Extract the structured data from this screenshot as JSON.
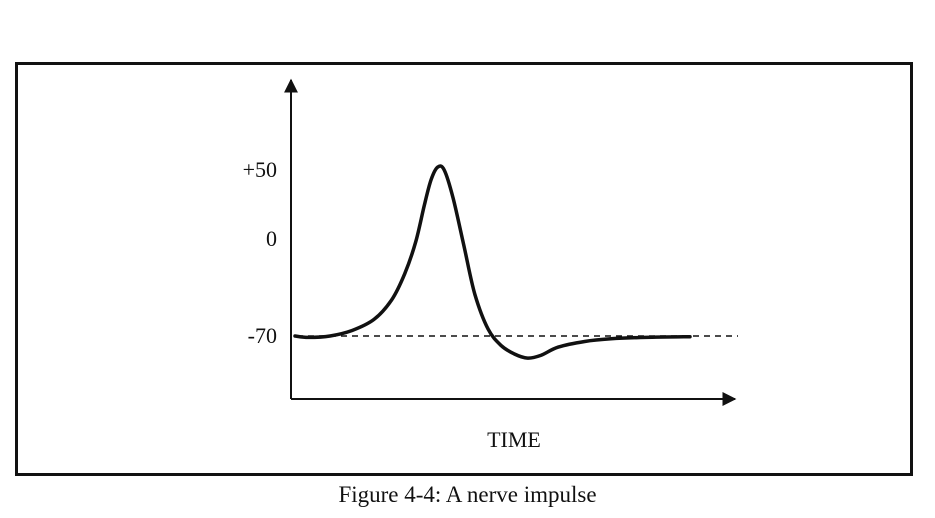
{
  "caption": "Figure 4-4: A nerve impulse",
  "chart_data": {
    "type": "line",
    "title": "",
    "xlabel": "TIME",
    "ylabel": "",
    "yticks": [
      {
        "value": 50,
        "label": "+50"
      },
      {
        "value": 0,
        "label": "0"
      },
      {
        "value": -70,
        "label": "-70"
      }
    ],
    "ylim": [
      -115,
      115
    ],
    "xlim": [
      0,
      10
    ],
    "reference_line": {
      "value": -70,
      "style": "dashed"
    },
    "series": [
      {
        "values": [
          [
            0.0,
            -70
          ],
          [
            0.3,
            -71
          ],
          [
            0.8,
            -70
          ],
          [
            1.3,
            -66
          ],
          [
            1.8,
            -58
          ],
          [
            2.2,
            -44
          ],
          [
            2.5,
            -25
          ],
          [
            2.75,
            -2
          ],
          [
            2.95,
            25
          ],
          [
            3.1,
            43
          ],
          [
            3.25,
            52
          ],
          [
            3.4,
            50
          ],
          [
            3.6,
            30
          ],
          [
            3.85,
            -5
          ],
          [
            4.1,
            -40
          ],
          [
            4.4,
            -65
          ],
          [
            4.7,
            -77
          ],
          [
            5.0,
            -83
          ],
          [
            5.3,
            -86
          ],
          [
            5.6,
            -84
          ],
          [
            6.0,
            -78
          ],
          [
            6.6,
            -74
          ],
          [
            7.2,
            -72
          ],
          [
            8.0,
            -71
          ],
          [
            9.0,
            -70.5
          ]
        ]
      }
    ],
    "colors": {
      "line": "#111111",
      "axis": "#111111"
    }
  }
}
